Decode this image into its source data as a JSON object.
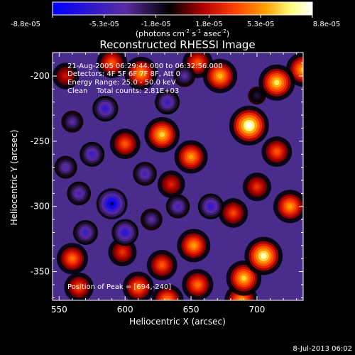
{
  "colorbar": {
    "tick_labels": [
      "-8.8e-05",
      "-5.3e-05",
      "-1.8e-05",
      "1.8e-05",
      "5.3e-05",
      "8.8e-05"
    ],
    "range": [
      -8.8e-05,
      8.8e-05
    ],
    "units_prefix": "(photons cm",
    "units_exp1": "-2",
    "units_mid": " s",
    "units_exp2": "-1",
    "units_mid2": " asec",
    "units_exp3": "-2",
    "units_suffix": ")",
    "colors": [
      "#0000ff",
      "#5a2ca0",
      "#000000",
      "#b00000",
      "#ff4000",
      "#ffa000",
      "#ffff80",
      "#ffffff"
    ]
  },
  "annotations": {
    "line1": "21-Aug-2005 06:29:44.000 to 06:32:56.000",
    "line2": "Detectors: 4F 5F 6F 7F 8F, Att 0",
    "line3": "Energy Range: 25.0 - 50.0 keV",
    "line4": "Clean    Total counts: 2.81E+03",
    "peak": "Position of Peak = [694,-240]"
  },
  "footer": {
    "timestamp": "8-Jul-2013 06:02"
  },
  "chart_data": {
    "type": "heatmap",
    "title": "Reconstructed RHESSI Image",
    "xlabel": "Heliocentric X (arcsec)",
    "ylabel": "Heliocentric Y (arcsec)",
    "xlim": [
      545,
      735
    ],
    "ylim": [
      -372,
      -182
    ],
    "x_ticks": [
      550,
      600,
      650,
      700
    ],
    "y_ticks": [
      -350,
      -300,
      -250,
      -200
    ],
    "x_tick_labels": [
      "550",
      "600",
      "650",
      "700"
    ],
    "y_tick_labels": [
      "-350",
      "-300",
      "-250",
      "-200"
    ],
    "colorbar_range": [
      -8.8e-05,
      8.8e-05
    ],
    "peak_position": [
      694,
      -240
    ],
    "blobs": [
      {
        "x": 694,
        "y": -238,
        "v": 8.8e-05
      },
      {
        "x": 715,
        "y": -205,
        "v": 7e-05
      },
      {
        "x": 735,
        "y": -195,
        "v": 6e-05
      },
      {
        "x": 672,
        "y": -200,
        "v": 6e-05
      },
      {
        "x": 612,
        "y": -198,
        "v": 5.5e-05
      },
      {
        "x": 590,
        "y": -190,
        "v": 4e-05
      },
      {
        "x": 655,
        "y": -190,
        "v": 4e-05
      },
      {
        "x": 628,
        "y": -245,
        "v": 6.5e-05
      },
      {
        "x": 650,
        "y": -262,
        "v": 5.5e-05
      },
      {
        "x": 600,
        "y": -252,
        "v": 4e-05
      },
      {
        "x": 715,
        "y": -258,
        "v": 4e-05
      },
      {
        "x": 700,
        "y": -285,
        "v": 3e-05
      },
      {
        "x": 725,
        "y": -300,
        "v": 5.5e-05
      },
      {
        "x": 682,
        "y": -305,
        "v": 3.5e-05
      },
      {
        "x": 705,
        "y": -338,
        "v": 8e-05
      },
      {
        "x": 690,
        "y": -355,
        "v": 6.5e-05
      },
      {
        "x": 652,
        "y": -330,
        "v": 5.5e-05
      },
      {
        "x": 655,
        "y": -360,
        "v": 4.5e-05
      },
      {
        "x": 560,
        "y": -340,
        "v": 4.5e-05
      },
      {
        "x": 565,
        "y": -362,
        "v": 3.5e-05
      },
      {
        "x": 610,
        "y": -362,
        "v": 4.5e-05
      },
      {
        "x": 628,
        "y": -345,
        "v": 4e-05
      },
      {
        "x": 598,
        "y": -335,
        "v": 3e-05
      },
      {
        "x": 632,
        "y": -372,
        "v": 5e-05
      },
      {
        "x": 688,
        "y": -372,
        "v": 5.5e-05
      },
      {
        "x": 555,
        "y": -200,
        "v": 2e-05
      },
      {
        "x": 635,
        "y": -283,
        "v": 2.5e-05
      },
      {
        "x": 560,
        "y": -235,
        "v": -4e-05
      },
      {
        "x": 585,
        "y": -225,
        "v": -6e-05
      },
      {
        "x": 575,
        "y": -260,
        "v": -5.5e-05
      },
      {
        "x": 565,
        "y": -290,
        "v": -5e-05
      },
      {
        "x": 590,
        "y": -298,
        "v": -8.8e-05
      },
      {
        "x": 615,
        "y": -275,
        "v": -5e-05
      },
      {
        "x": 600,
        "y": -320,
        "v": -6.5e-05
      },
      {
        "x": 570,
        "y": -320,
        "v": -5.5e-05
      },
      {
        "x": 640,
        "y": -300,
        "v": -5e-05
      },
      {
        "x": 665,
        "y": -300,
        "v": -6e-05
      },
      {
        "x": 632,
        "y": -220,
        "v": -5.5e-05
      },
      {
        "x": 645,
        "y": -200,
        "v": -4e-05
      },
      {
        "x": 555,
        "y": -270,
        "v": -4.5e-05
      },
      {
        "x": 620,
        "y": -310,
        "v": -4e-05
      },
      {
        "x": 700,
        "y": -215,
        "v": -2e-05
      }
    ]
  }
}
